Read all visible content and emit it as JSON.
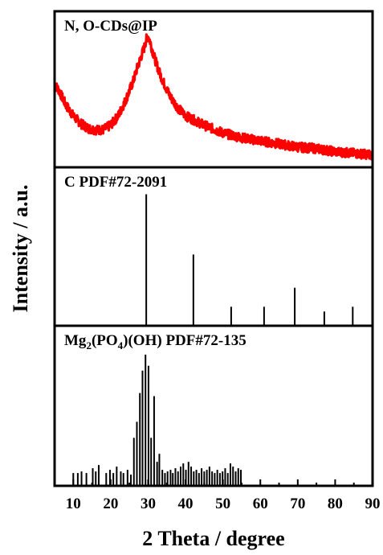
{
  "chart_data": {
    "type": "line",
    "xlabel": "2 Theta / degree",
    "ylabel": "Intensity / a.u.",
    "xlim": [
      5,
      90
    ],
    "xticks": [
      10,
      20,
      30,
      40,
      50,
      60,
      70,
      80,
      90
    ],
    "ytick_labels": "none",
    "grid": false,
    "panels": [
      {
        "label": "N, O-CDs@IP",
        "type": "line",
        "color": "#ff0000",
        "ylim": [
          0,
          1
        ],
        "x": [
          5,
          6,
          8,
          10,
          12,
          14,
          16,
          18,
          20,
          22,
          24,
          26,
          27,
          28,
          29,
          29.5,
          30,
          30.5,
          31,
          32,
          33,
          34,
          36,
          38,
          40,
          45,
          50,
          55,
          60,
          65,
          70,
          75,
          80,
          85,
          90
        ],
        "y": [
          0.53,
          0.5,
          0.4,
          0.33,
          0.28,
          0.25,
          0.24,
          0.24,
          0.27,
          0.33,
          0.43,
          0.55,
          0.63,
          0.7,
          0.77,
          0.82,
          0.84,
          0.81,
          0.76,
          0.68,
          0.61,
          0.55,
          0.45,
          0.38,
          0.33,
          0.27,
          0.22,
          0.19,
          0.17,
          0.15,
          0.13,
          0.12,
          0.1,
          0.09,
          0.08
        ]
      },
      {
        "label": "C PDF#72-2091",
        "type": "stick",
        "color": "#000000",
        "ylim": [
          0,
          1
        ],
        "x": [
          29.5,
          42.1,
          52.2,
          61.0,
          69.2,
          77.1,
          84.7
        ],
        "y": [
          0.83,
          0.45,
          0.12,
          0.12,
          0.24,
          0.09,
          0.12
        ]
      },
      {
        "label_parts": [
          "Mg",
          "2",
          "(PO",
          "4",
          ")(OH) PDF#72-135"
        ],
        "type": "stick",
        "color": "#000000",
        "ylim": [
          0,
          1
        ],
        "x": [
          10.0,
          11.2,
          12.2,
          13.5,
          15.2,
          16.0,
          16.8,
          18.8,
          19.8,
          20.7,
          21.6,
          22.7,
          23.4,
          24.5,
          25.4,
          26.2,
          27.0,
          27.8,
          28.5,
          29.3,
          30.1,
          30.8,
          31.6,
          32.4,
          33.0,
          33.8,
          34.5,
          35.2,
          36.0,
          36.6,
          37.3,
          38.0,
          38.7,
          39.4,
          40.1,
          40.8,
          41.5,
          42.2,
          42.9,
          43.6,
          44.3,
          45.0,
          45.7,
          46.4,
          47.1,
          47.8,
          48.5,
          49.2,
          49.9,
          50.6,
          51.3,
          52.0,
          52.7,
          53.4,
          54.1,
          54.8
        ],
        "y": [
          0.08,
          0.08,
          0.09,
          0.08,
          0.11,
          0.09,
          0.13,
          0.08,
          0.1,
          0.08,
          0.12,
          0.09,
          0.08,
          0.1,
          0.07,
          0.3,
          0.4,
          0.58,
          0.72,
          0.82,
          0.75,
          0.3,
          0.56,
          0.15,
          0.2,
          0.1,
          0.08,
          0.09,
          0.1,
          0.08,
          0.11,
          0.09,
          0.12,
          0.14,
          0.1,
          0.15,
          0.12,
          0.09,
          0.1,
          0.08,
          0.11,
          0.09,
          0.1,
          0.12,
          0.09,
          0.08,
          0.1,
          0.08,
          0.09,
          0.11,
          0.08,
          0.14,
          0.12,
          0.09,
          0.11,
          0.1
        ]
      }
    ]
  }
}
